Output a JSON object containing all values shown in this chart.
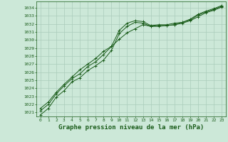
{
  "bg_color": "#cce8d8",
  "grid_color": "#aaccbb",
  "line_color": "#1a5c1a",
  "title": "Graphe pression niveau de la mer (hPa)",
  "title_fontsize": 6.5,
  "ylim": [
    1020.5,
    1034.8
  ],
  "xlim": [
    -0.5,
    23.5
  ],
  "yticks": [
    1021,
    1022,
    1023,
    1024,
    1025,
    1026,
    1027,
    1028,
    1029,
    1030,
    1031,
    1032,
    1033,
    1034
  ],
  "xticks": [
    0,
    1,
    2,
    3,
    4,
    5,
    6,
    7,
    8,
    9,
    10,
    11,
    12,
    13,
    14,
    15,
    16,
    17,
    18,
    19,
    20,
    21,
    22,
    23
  ],
  "line1_x": [
    0,
    1,
    2,
    3,
    4,
    5,
    6,
    7,
    8,
    9,
    10,
    11,
    12,
    13,
    14,
    15,
    16,
    17,
    18,
    19,
    20,
    21,
    22,
    23
  ],
  "line1_y": [
    1020.7,
    1021.5,
    1022.9,
    1023.7,
    1024.8,
    1025.3,
    1026.2,
    1026.8,
    1027.5,
    1028.7,
    1030.8,
    1031.7,
    1032.2,
    1032.1,
    1031.7,
    1031.8,
    1031.8,
    1031.9,
    1032.1,
    1032.4,
    1032.9,
    1033.4,
    1033.7,
    1034.1
  ],
  "line2_x": [
    0,
    1,
    2,
    3,
    4,
    5,
    6,
    7,
    8,
    9,
    10,
    11,
    12,
    13,
    14,
    15,
    16,
    17,
    18,
    19,
    20,
    21,
    22,
    23
  ],
  "line2_y": [
    1021.2,
    1022.0,
    1023.3,
    1024.3,
    1025.2,
    1025.8,
    1026.7,
    1027.3,
    1028.2,
    1029.2,
    1031.2,
    1032.1,
    1032.4,
    1032.3,
    1031.8,
    1031.9,
    1031.9,
    1032.1,
    1032.2,
    1032.5,
    1033.1,
    1033.5,
    1033.8,
    1034.2
  ],
  "line3_x": [
    0,
    1,
    2,
    3,
    4,
    5,
    6,
    7,
    8,
    9,
    10,
    11,
    12,
    13,
    14,
    15,
    16,
    17,
    18,
    19,
    20,
    21,
    22,
    23
  ],
  "line3_y": [
    1021.5,
    1022.3,
    1023.5,
    1024.5,
    1025.4,
    1026.3,
    1027.0,
    1027.7,
    1028.6,
    1029.2,
    1030.1,
    1030.9,
    1031.4,
    1031.9,
    1031.7,
    1031.7,
    1031.8,
    1031.9,
    1032.2,
    1032.6,
    1033.2,
    1033.6,
    1033.9,
    1034.3
  ]
}
